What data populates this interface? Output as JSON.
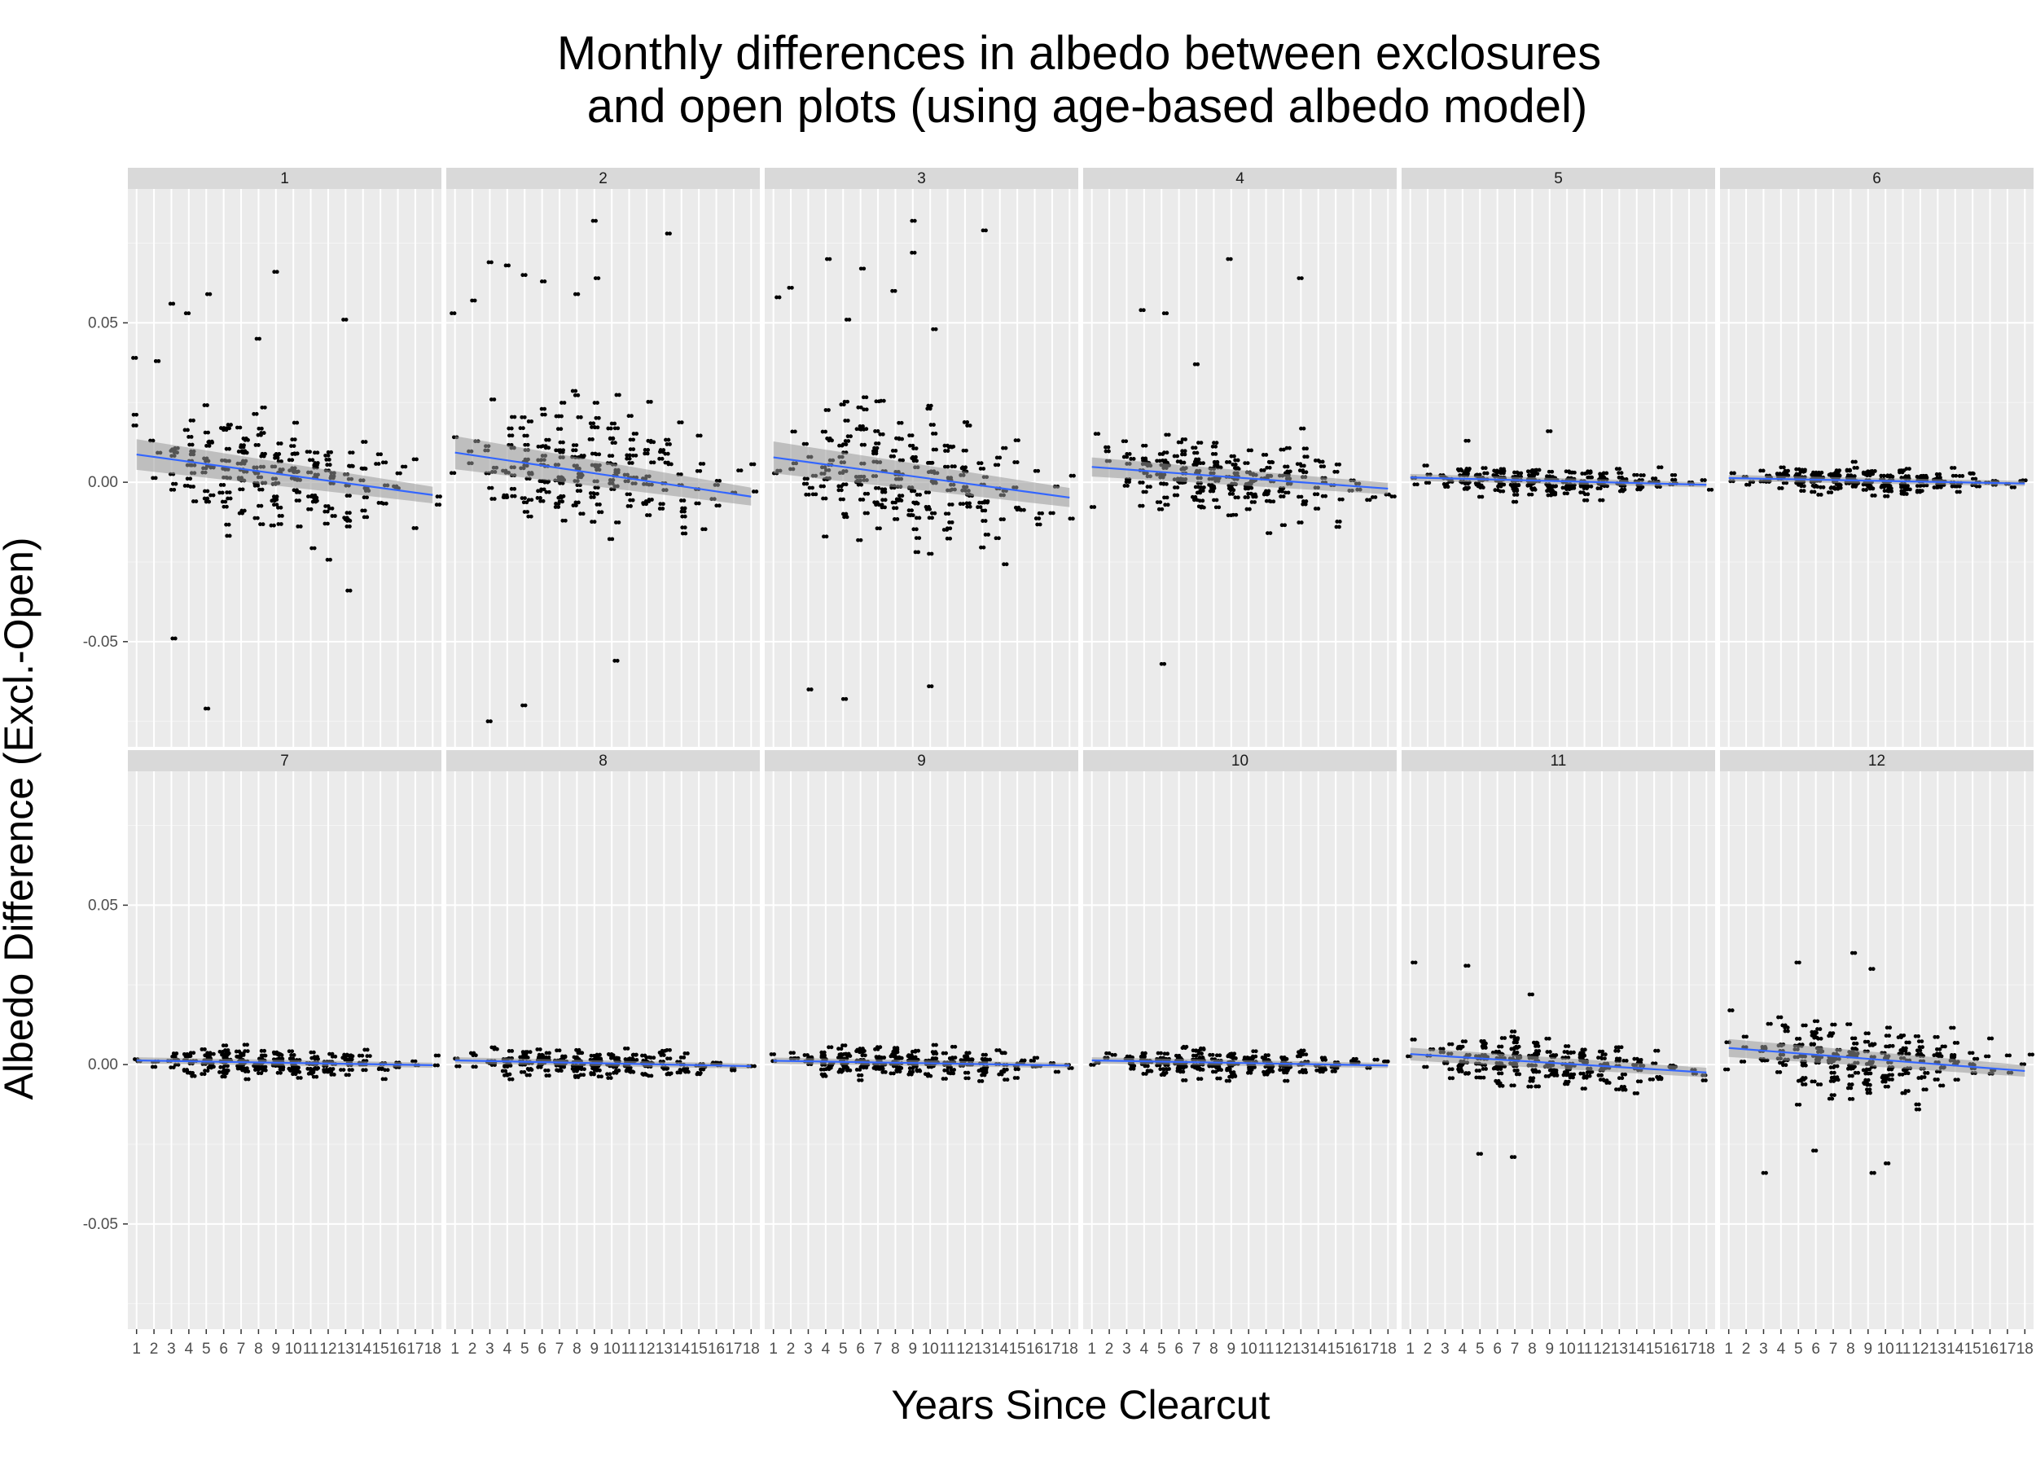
{
  "chart_data": {
    "type": "scatter",
    "title_lines": [
      "Monthly differences in albedo between exclosures",
      "and open plots (using age-based albedo model)"
    ],
    "xlabel": "Years Since Clearcut",
    "ylabel": "Albedo Difference (Excl.-Open)",
    "x_categories": [
      "1",
      "2",
      "3",
      "4",
      "5",
      "6",
      "7",
      "8",
      "9",
      "10",
      "11",
      "12",
      "13",
      "14",
      "15",
      "16",
      "17",
      "18"
    ],
    "xlim": [
      0.5,
      18.5
    ],
    "ylim": [
      -0.083,
      0.092
    ],
    "y_ticks": [
      -0.05,
      0.0,
      0.05
    ],
    "y_tick_labels": [
      "-0.05",
      "0.00",
      "0.05"
    ],
    "grid": true,
    "facet_layout": {
      "rows": 2,
      "cols": 6
    },
    "smooth_color": "#3366FF",
    "band_color": "#999999",
    "point_color": "#000000",
    "panel_background": "#EBEBEB",
    "strip_background": "#D9D9D9",
    "panels": [
      {
        "label": "1",
        "spread": 0.022,
        "fit": [
          0.0087,
          -0.004
        ],
        "se": [
          0.0048,
          0.0026
        ],
        "outliers": [
          [
            1,
            0.039
          ],
          [
            2,
            0.038
          ],
          [
            3,
            0.056
          ],
          [
            3,
            -0.049
          ],
          [
            4,
            0.053
          ],
          [
            5,
            0.059
          ],
          [
            5,
            -0.071
          ],
          [
            9,
            0.066
          ],
          [
            8,
            0.045
          ],
          [
            13,
            0.051
          ],
          [
            13,
            -0.034
          ]
        ]
      },
      {
        "label": "2",
        "spread": 0.025,
        "fit": [
          0.0093,
          -0.0045
        ],
        "se": [
          0.0052,
          0.0028
        ],
        "outliers": [
          [
            1,
            0.053
          ],
          [
            2,
            0.057
          ],
          [
            3,
            0.069
          ],
          [
            4,
            0.068
          ],
          [
            3,
            -0.075
          ],
          [
            5,
            0.065
          ],
          [
            5,
            -0.07
          ],
          [
            6,
            0.063
          ],
          [
            8,
            0.059
          ],
          [
            9,
            0.082
          ],
          [
            9,
            0.064
          ],
          [
            13,
            0.078
          ],
          [
            10,
            -0.056
          ]
        ]
      },
      {
        "label": "3",
        "spread": 0.025,
        "fit": [
          0.0078,
          -0.0048
        ],
        "se": [
          0.005,
          0.003
        ],
        "outliers": [
          [
            1,
            0.058
          ],
          [
            2,
            0.061
          ],
          [
            3,
            -0.065
          ],
          [
            4,
            0.07
          ],
          [
            5,
            -0.068
          ],
          [
            5,
            0.051
          ],
          [
            6,
            0.067
          ],
          [
            8,
            0.06
          ],
          [
            9,
            0.082
          ],
          [
            9,
            0.072
          ],
          [
            10,
            0.048
          ],
          [
            10,
            -0.064
          ],
          [
            13,
            0.079
          ]
        ]
      },
      {
        "label": "4",
        "spread": 0.016,
        "fit": [
          0.0048,
          -0.002
        ],
        "se": [
          0.003,
          0.0018
        ],
        "outliers": [
          [
            4,
            0.054
          ],
          [
            5,
            0.053
          ],
          [
            5,
            -0.057
          ],
          [
            9,
            0.07
          ],
          [
            13,
            0.064
          ],
          [
            7,
            0.037
          ]
        ]
      },
      {
        "label": "5",
        "spread": 0.0055,
        "fit": [
          0.0015,
          -0.0008
        ],
        "se": [
          0.0011,
          0.0008
        ],
        "outliers": [
          [
            4,
            0.013
          ],
          [
            9,
            0.016
          ]
        ]
      },
      {
        "label": "6",
        "spread": 0.0055,
        "fit": [
          0.0013,
          -0.0004
        ],
        "se": [
          0.001,
          0.0008
        ],
        "outliers": []
      },
      {
        "label": "7",
        "spread": 0.0055,
        "fit": [
          0.0013,
          -0.0002
        ],
        "se": [
          0.001,
          0.0008
        ],
        "outliers": []
      },
      {
        "label": "8",
        "spread": 0.0055,
        "fit": [
          0.0013,
          -0.0005
        ],
        "se": [
          0.001,
          0.0008
        ],
        "outliers": []
      },
      {
        "label": "9",
        "spread": 0.0055,
        "fit": [
          0.0012,
          -0.0003
        ],
        "se": [
          0.001,
          0.0008
        ],
        "outliers": []
      },
      {
        "label": "10",
        "spread": 0.0055,
        "fit": [
          0.0013,
          -0.0003
        ],
        "se": [
          0.001,
          0.0008
        ],
        "outliers": []
      },
      {
        "label": "11",
        "spread": 0.01,
        "fit": [
          0.0033,
          -0.0025
        ],
        "se": [
          0.002,
          0.0015
        ],
        "outliers": [
          [
            1,
            0.032
          ],
          [
            4,
            0.031
          ],
          [
            5,
            -0.028
          ],
          [
            7,
            -0.029
          ],
          [
            8,
            0.022
          ]
        ]
      },
      {
        "label": "12",
        "spread": 0.014,
        "fit": [
          0.0052,
          -0.002
        ],
        "se": [
          0.0028,
          0.0018
        ],
        "outliers": [
          [
            1,
            0.017
          ],
          [
            3,
            -0.034
          ],
          [
            5,
            0.032
          ],
          [
            6,
            -0.027
          ],
          [
            8,
            0.035
          ],
          [
            9,
            0.03
          ],
          [
            9,
            -0.034
          ],
          [
            10,
            -0.031
          ]
        ]
      }
    ]
  }
}
